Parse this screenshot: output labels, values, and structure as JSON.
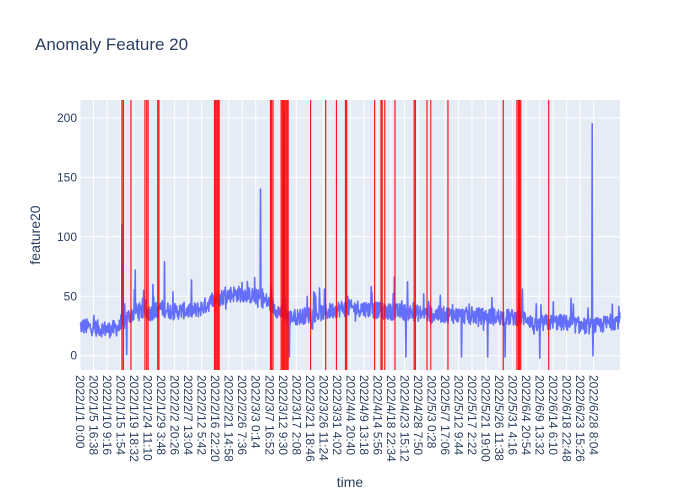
{
  "chart_data": {
    "type": "line",
    "title": "Anomaly Feature 20",
    "xlabel": "time",
    "ylabel": "feature20",
    "ylim": [
      -12,
      215
    ],
    "yticks": [
      0,
      50,
      100,
      150,
      200
    ],
    "x_tick_labels": [
      "2022/1/1 0:00",
      "2022/1/5 16:38",
      "2022/1/10 9:16",
      "2022/1/15 1:54",
      "2022/1/19 18:32",
      "2022/1/24 11:10",
      "2022/1/29 3:48",
      "2022/2/2 20:26",
      "2022/2/7 13:04",
      "2022/2/12 5:42",
      "2022/2/16 22:20",
      "2022/2/21 14:58",
      "2022/2/26 7:36",
      "2022/3/3 0:14",
      "2022/3/7 16:52",
      "2022/3/12 9:30",
      "2022/3/17 2:08",
      "2022/3/21 18:46",
      "2022/3/26 11:24",
      "2022/3/31 4:02",
      "2022/4/4 20:40",
      "2022/4/9 13:18",
      "2022/4/14 5:56",
      "2022/4/18 22:34",
      "2022/4/23 15:12",
      "2022/4/28 7:50",
      "2022/5/3 0:28",
      "2022/5/7 17:06",
      "2022/5/12 9:44",
      "2022/5/17 2:22",
      "2022/5/21 19:00",
      "2022/5/26 11:38",
      "2022/5/31 4:16",
      "2022/6/4 20:54",
      "2022/6/9 13:32",
      "2022/6/14 6:10",
      "2022/6/18 22:48",
      "2022/6/23 15:26",
      "2022/6/28 8:04"
    ],
    "x_range_days": [
      0,
      185.5
    ],
    "grid": true,
    "series": [
      {
        "name": "feature20",
        "color": "#636efa",
        "baseline": [
          [
            0,
            25
          ],
          [
            10,
            22
          ],
          [
            14,
            24
          ],
          [
            16,
            32
          ],
          [
            20,
            38
          ],
          [
            24,
            36
          ],
          [
            28,
            40
          ],
          [
            32,
            37
          ],
          [
            36,
            38
          ],
          [
            40,
            38
          ],
          [
            43,
            42
          ],
          [
            47,
            48
          ],
          [
            52,
            52
          ],
          [
            56,
            52
          ],
          [
            60,
            50
          ],
          [
            64,
            46
          ],
          [
            68,
            38
          ],
          [
            72,
            32
          ],
          [
            76,
            33
          ],
          [
            80,
            35
          ],
          [
            85,
            37
          ],
          [
            90,
            40
          ],
          [
            95,
            40
          ],
          [
            100,
            39
          ],
          [
            105,
            37
          ],
          [
            110,
            37
          ],
          [
            115,
            36
          ],
          [
            120,
            35
          ],
          [
            130,
            34
          ],
          [
            140,
            33
          ],
          [
            150,
            32
          ],
          [
            154,
            32
          ],
          [
            156,
            24
          ],
          [
            160,
            28
          ],
          [
            166,
            28
          ],
          [
            172,
            25
          ],
          [
            178,
            25
          ],
          [
            182,
            28
          ],
          [
            185.5,
            30
          ]
        ],
        "spikes": [
          [
            14.5,
            110
          ],
          [
            16,
            1
          ],
          [
            19,
            72
          ],
          [
            25,
            60
          ],
          [
            29,
            79
          ],
          [
            58,
            57
          ],
          [
            62,
            140
          ],
          [
            70,
            204
          ],
          [
            72,
            -1
          ],
          [
            78,
            50
          ],
          [
            84,
            56
          ],
          [
            92,
            50
          ],
          [
            100,
            58
          ],
          [
            108,
            66
          ],
          [
            112,
            -1
          ],
          [
            118,
            52
          ],
          [
            128,
            43
          ],
          [
            131,
            -1
          ],
          [
            140,
            -1
          ],
          [
            146,
            -1
          ],
          [
            152,
            56
          ],
          [
            158,
            -2
          ],
          [
            176,
            195
          ],
          [
            176.2,
            0
          ]
        ]
      }
    ],
    "anomaly_color": "#ff0000",
    "anomaly_times": [
      14.4,
      14.9,
      17.5,
      22.3,
      22.9,
      23.4,
      26.7,
      27.1,
      46.2,
      46.6,
      47.0,
      47.4,
      47.8,
      65.4,
      65.8,
      66.3,
      69.1,
      69.5,
      69.9,
      70.3,
      70.7,
      71.1,
      71.5,
      79.2,
      84.4,
      88.1,
      91.2,
      91.6,
      101.2,
      103.4,
      103.8,
      104.7,
      108.2,
      114.8,
      115.2,
      119.2,
      120.5,
      126.4,
      145.4,
      150.1,
      150.6,
      151.0,
      151.4,
      161.0
    ]
  }
}
